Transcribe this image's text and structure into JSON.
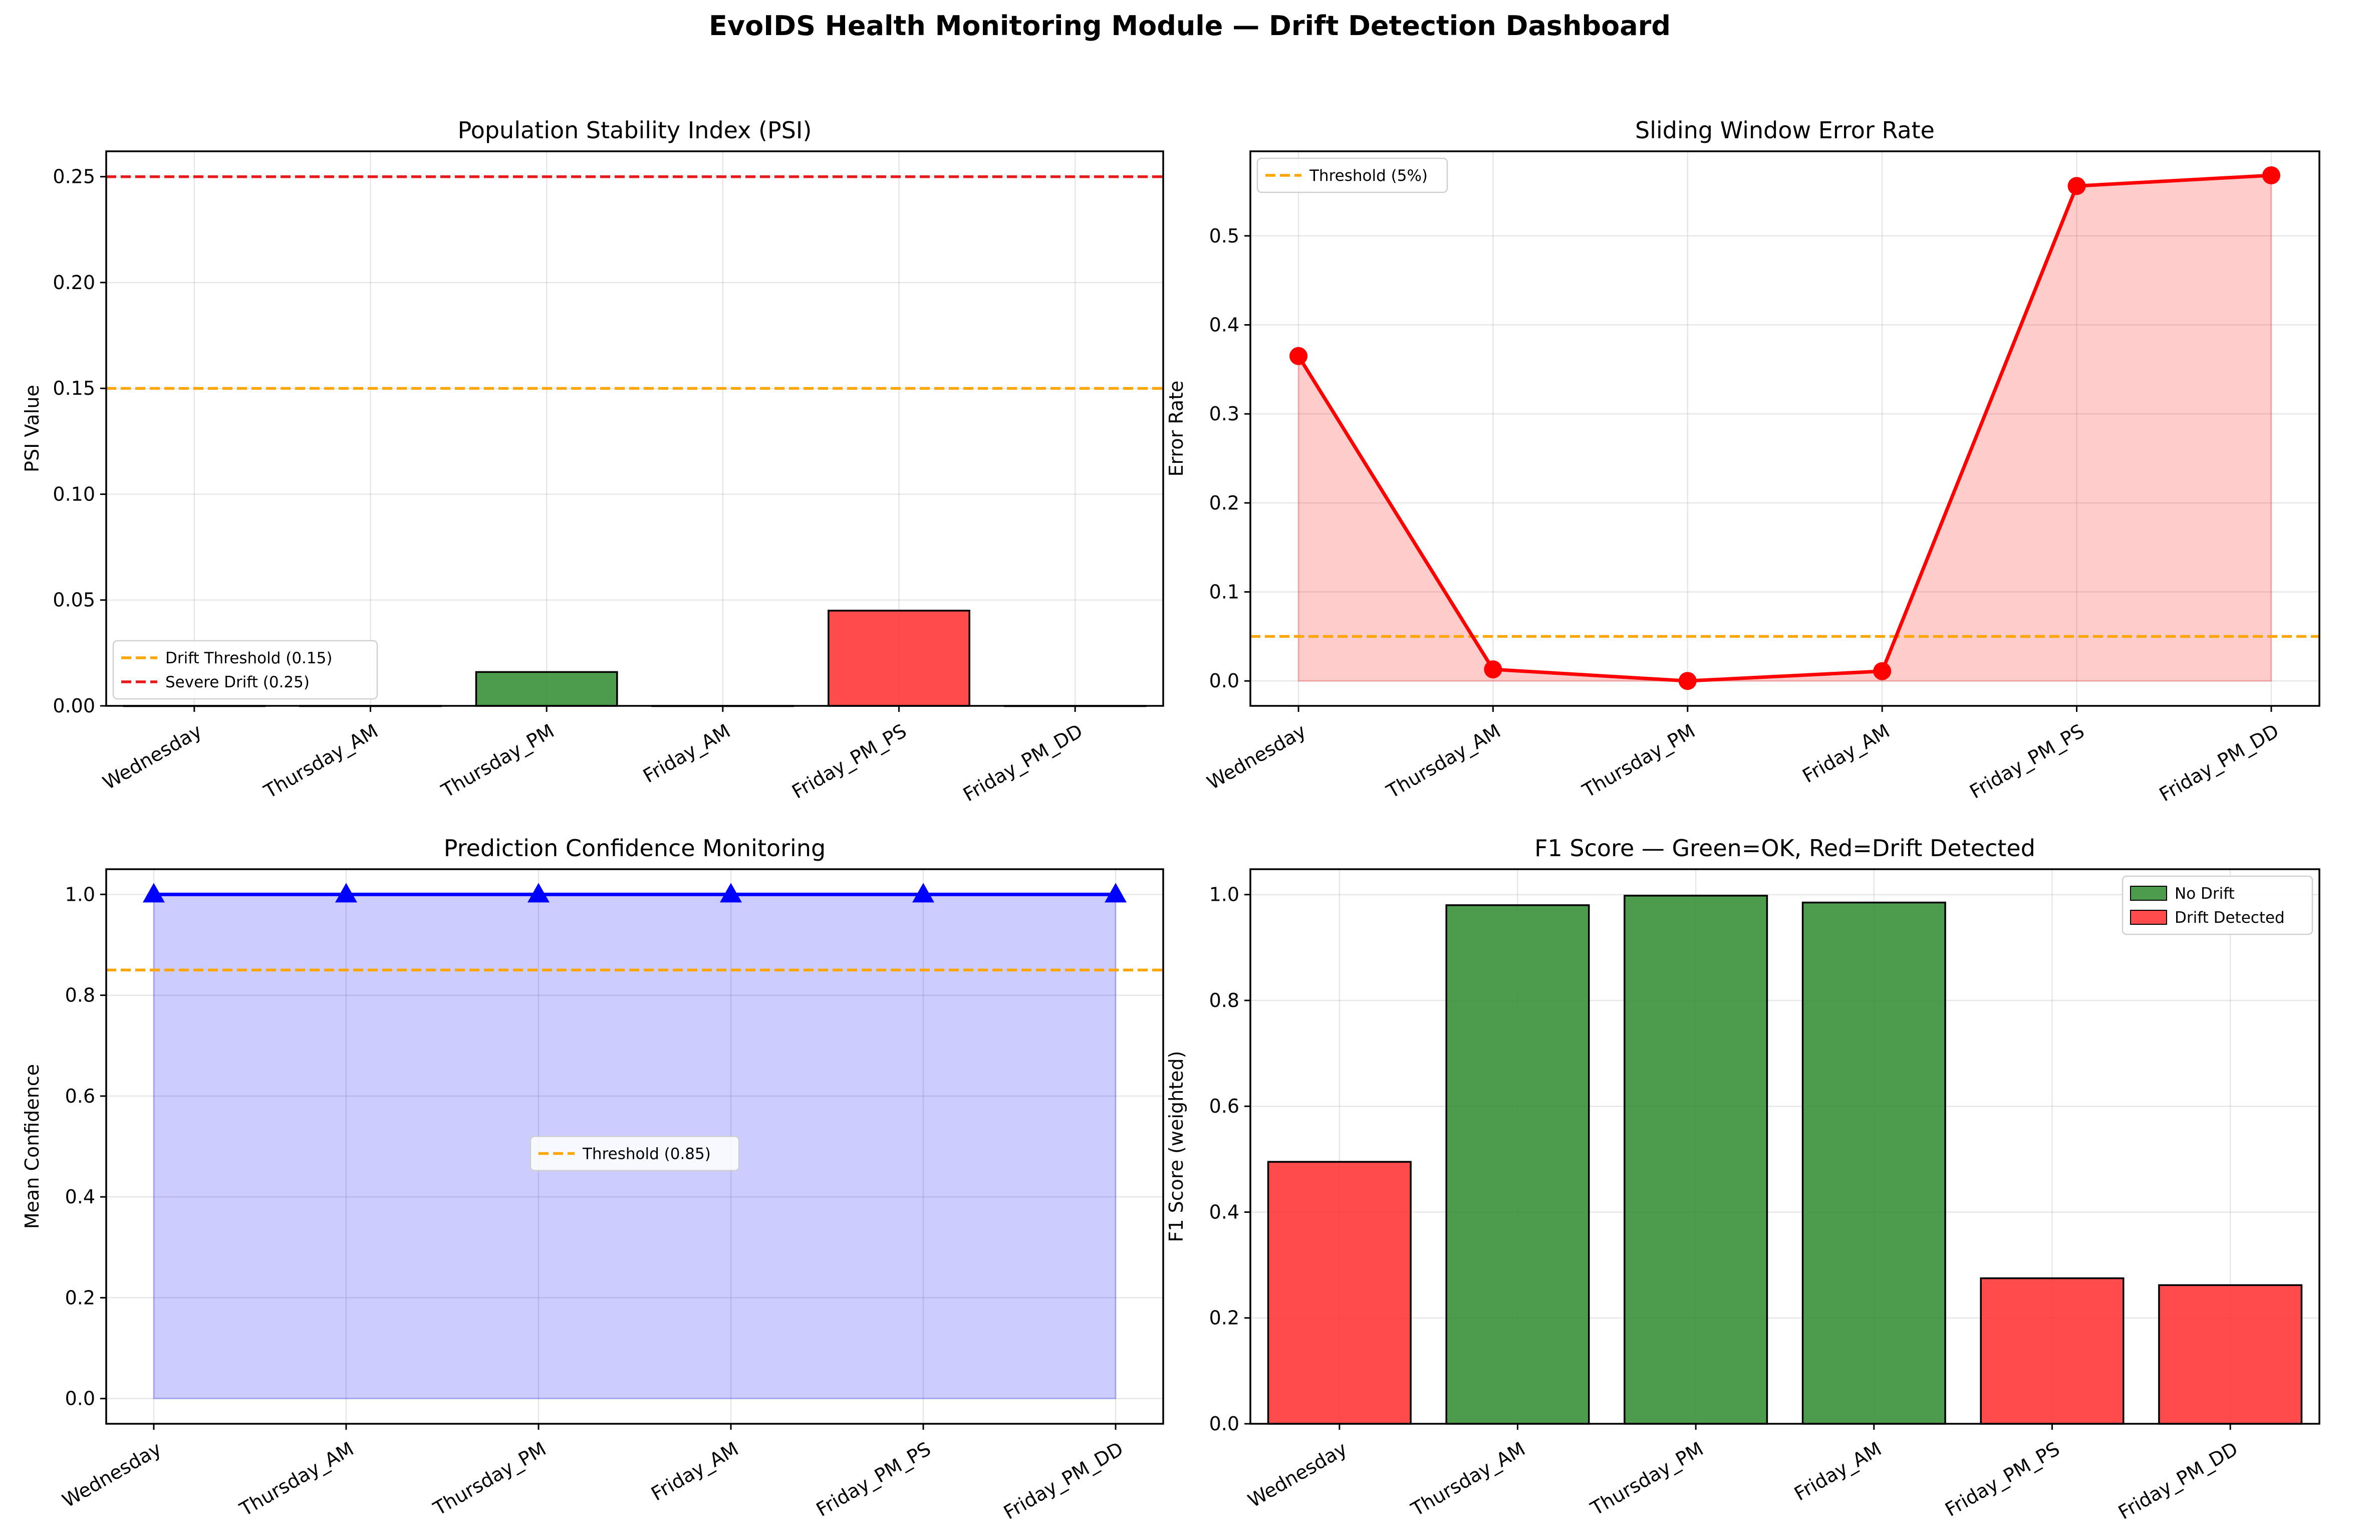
{
  "page_title": "EvoIDS Health Monitoring Module — Drift Detection Dashboard",
  "colors": {
    "ok": "#2e8b2e",
    "drift": "#ff2b2b",
    "threshold": "#ffa500",
    "severe": "#e8191b",
    "error_line": "#ff0000",
    "confidence_line": "#0000ff"
  },
  "chart_data": [
    {
      "id": "psi",
      "type": "bar",
      "title": "Population Stability Index (PSI)",
      "xlabel": "",
      "ylabel": "PSI Value",
      "categories": [
        "Wednesday",
        "Thursday_AM",
        "Thursday_PM",
        "Friday_AM",
        "Friday_PM_PS",
        "Friday_PM_DD"
      ],
      "values": [
        0.0,
        0.0,
        0.016,
        0.0,
        0.045,
        0.0
      ],
      "bar_status": [
        "ok",
        "ok",
        "ok",
        "ok",
        "drift",
        "ok"
      ],
      "ylim": [
        0,
        0.262
      ],
      "yticks": [
        0.0,
        0.05,
        0.1,
        0.15,
        0.2,
        0.25
      ],
      "ytick_labels": [
        "0.00",
        "0.05",
        "0.10",
        "0.15",
        "0.20",
        "0.25"
      ],
      "thresholds": [
        {
          "label": "Drift Threshold (0.15)",
          "value": 0.15,
          "color": "#ffa500"
        },
        {
          "label": "Severe Drift (0.25)",
          "value": 0.25,
          "color": "#e8191b"
        }
      ],
      "grid": true,
      "legend": "lower-left"
    },
    {
      "id": "error",
      "type": "line",
      "title": "Sliding Window Error Rate",
      "xlabel": "",
      "ylabel": "Error Rate",
      "categories": [
        "Wednesday",
        "Thursday_AM",
        "Thursday_PM",
        "Friday_AM",
        "Friday_PM_PS",
        "Friday_PM_DD"
      ],
      "values": [
        0.365,
        0.013,
        0.0,
        0.011,
        0.556,
        0.568
      ],
      "ylim": [
        -0.028,
        0.595
      ],
      "yticks": [
        0.0,
        0.1,
        0.2,
        0.3,
        0.4,
        0.5
      ],
      "ytick_labels": [
        "0.0",
        "0.1",
        "0.2",
        "0.3",
        "0.4",
        "0.5"
      ],
      "thresholds": [
        {
          "label": "Threshold (5%)",
          "value": 0.05,
          "color": "#ffa500"
        }
      ],
      "fill": true,
      "marker": "circle",
      "grid": true,
      "legend": "upper-left"
    },
    {
      "id": "confidence",
      "type": "line",
      "title": "Prediction Confidence Monitoring",
      "xlabel": "",
      "ylabel": "Mean Confidence",
      "categories": [
        "Wednesday",
        "Thursday_AM",
        "Thursday_PM",
        "Friday_AM",
        "Friday_PM_PS",
        "Friday_PM_DD"
      ],
      "values": [
        1.0,
        1.0,
        1.0,
        1.0,
        1.0,
        1.0
      ],
      "ylim": [
        -0.05,
        1.05
      ],
      "yticks": [
        0.0,
        0.2,
        0.4,
        0.6,
        0.8,
        1.0
      ],
      "ytick_labels": [
        "0.0",
        "0.2",
        "0.4",
        "0.6",
        "0.8",
        "1.0"
      ],
      "thresholds": [
        {
          "label": "Threshold (0.85)",
          "value": 0.85,
          "color": "#ffa500"
        }
      ],
      "fill": true,
      "marker": "triangle",
      "grid": true,
      "legend": "center"
    },
    {
      "id": "f1",
      "type": "bar",
      "title": "F1 Score — Green=OK, Red=Drift Detected",
      "xlabel": "",
      "ylabel": "F1 Score (weighted)",
      "categories": [
        "Wednesday",
        "Thursday_AM",
        "Thursday_PM",
        "Friday_AM",
        "Friday_PM_PS",
        "Friday_PM_DD"
      ],
      "values": [
        0.495,
        0.98,
        0.998,
        0.985,
        0.275,
        0.262
      ],
      "bar_status": [
        "drift",
        "ok",
        "ok",
        "ok",
        "drift",
        "drift"
      ],
      "ylim": [
        0,
        1.048
      ],
      "yticks": [
        0.0,
        0.2,
        0.4,
        0.6,
        0.8,
        1.0
      ],
      "ytick_labels": [
        "0.0",
        "0.2",
        "0.4",
        "0.6",
        "0.8",
        "1.0"
      ],
      "legend_entries": [
        {
          "label": "No Drift",
          "status": "ok"
        },
        {
          "label": "Drift Detected",
          "status": "drift"
        }
      ],
      "grid": true,
      "legend": "upper-right"
    }
  ]
}
